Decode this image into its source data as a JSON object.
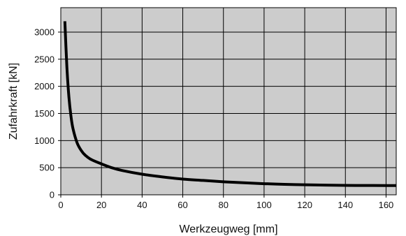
{
  "chart_data": {
    "type": "line",
    "title": "",
    "xlabel": "Werkzeugweg [mm]",
    "ylabel": "Zufahrkraft [kN]",
    "xlim": [
      0,
      165
    ],
    "ylim": [
      0,
      3450
    ],
    "x_ticks": [
      0,
      20,
      40,
      60,
      80,
      100,
      120,
      140,
      160
    ],
    "y_ticks": [
      0,
      500,
      1000,
      1500,
      2000,
      2500,
      3000
    ],
    "grid": true,
    "legend": "none",
    "plot_background": "#cccccc",
    "grid_color": "#000000",
    "line_color": "#000000",
    "series": [
      {
        "x": [
          2,
          3,
          4,
          5,
          6,
          8,
          10,
          12,
          15,
          20,
          25,
          30,
          40,
          50,
          60,
          70,
          80,
          90,
          100,
          110,
          120,
          130,
          140,
          150,
          160,
          165
        ],
        "values": [
          3200,
          2350,
          1800,
          1450,
          1220,
          960,
          820,
          730,
          650,
          570,
          500,
          450,
          380,
          330,
          290,
          265,
          240,
          222,
          205,
          193,
          185,
          178,
          173,
          172,
          171,
          170
        ]
      }
    ]
  }
}
